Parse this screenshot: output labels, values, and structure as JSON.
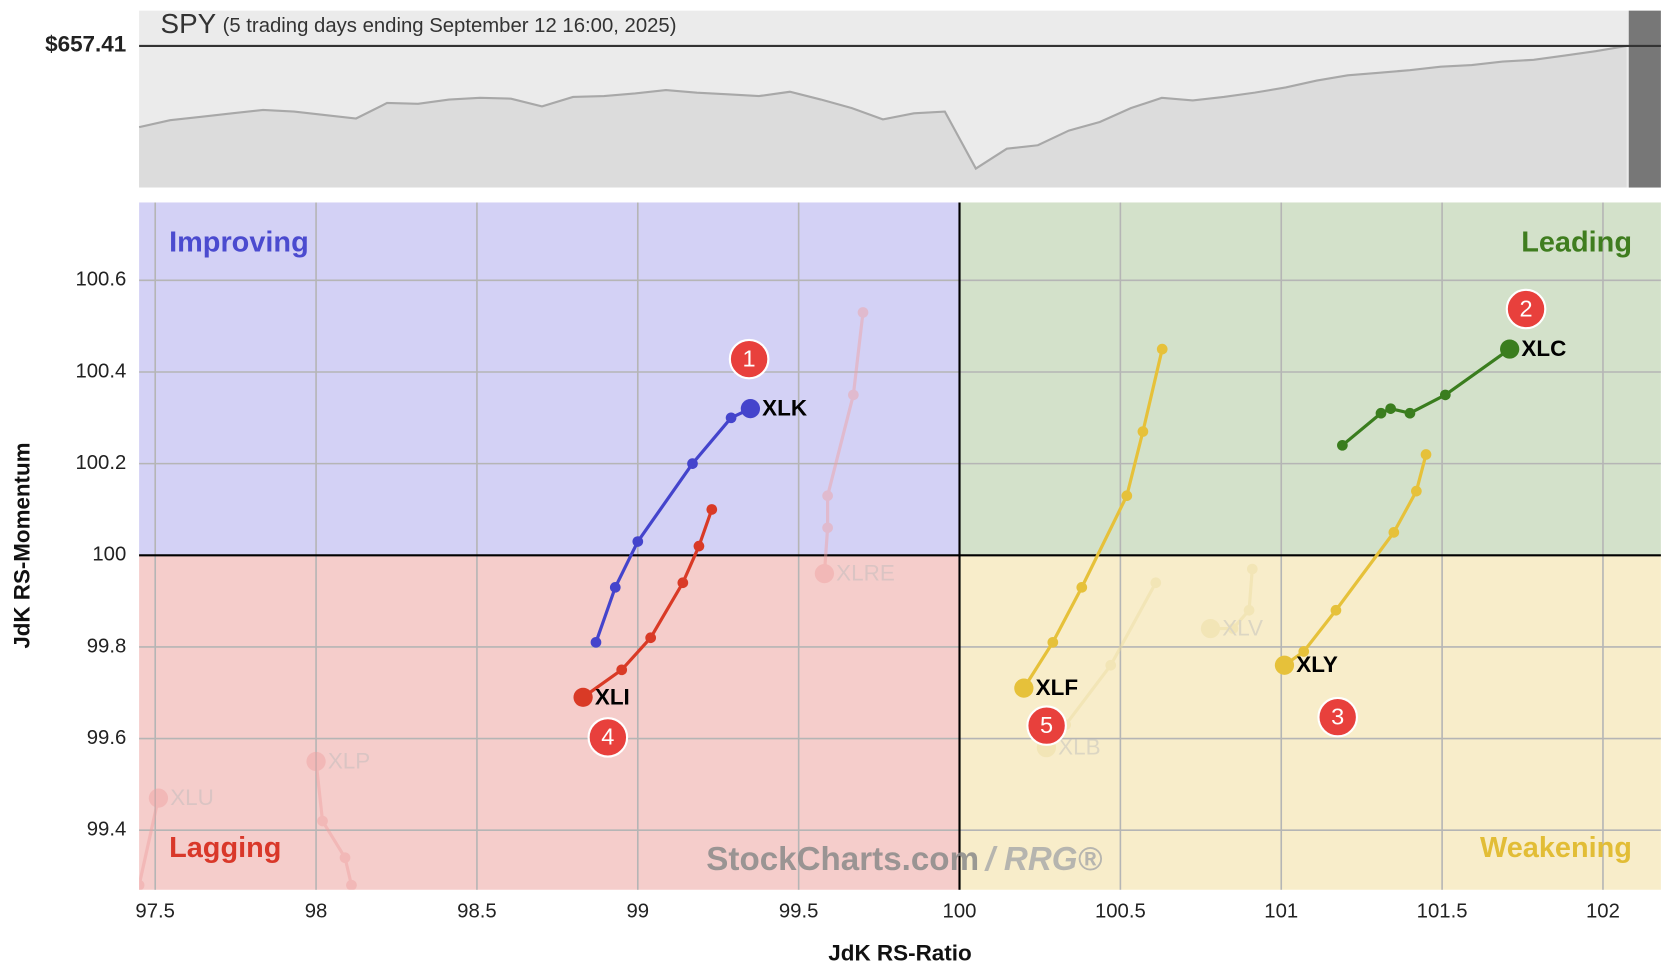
{
  "chart_data": {
    "type": "scatter",
    "title": "SPY",
    "subtitle": "(5 trading days ending September 12 16:00, 2025)",
    "xlabel": "JdK RS-Ratio",
    "ylabel": "JdK RS-Momentum",
    "xlim": [
      97.45,
      102.18
    ],
    "ylim": [
      99.27,
      100.77
    ],
    "xticks": [
      97.5,
      98,
      98.5,
      99,
      99.5,
      100,
      100.5,
      101,
      101.5,
      102
    ],
    "yticks": [
      99.4,
      99.6,
      99.8,
      100,
      100.2,
      100.4,
      100.6
    ],
    "center": [
      100,
      100
    ],
    "grid": true,
    "quadrants": {
      "improving": {
        "label": "Improving",
        "color": "#d3d1f5",
        "label_color": "#4b4bcf"
      },
      "leading": {
        "label": "Leading",
        "color": "#d3e1ca",
        "label_color": "#3f7d1f"
      },
      "lagging": {
        "label": "Lagging",
        "color": "#f5cdcb",
        "label_color": "#d9382a"
      },
      "weakening": {
        "label": "Weakening",
        "color": "#f8edca",
        "label_color": "#e2bd36"
      }
    },
    "series": [
      {
        "name": "XLU",
        "color": "#f0a0a0",
        "faded": true,
        "x": [
          97.45,
          97.51
        ],
        "y": [
          99.28,
          99.47
        ]
      },
      {
        "name": "XLP",
        "color": "#f0a0a0",
        "faded": true,
        "x": [
          98.11,
          98.09,
          98.02,
          98.0
        ],
        "y": [
          99.28,
          99.34,
          99.42,
          99.55
        ]
      },
      {
        "name": "XLRE",
        "color": "#f0a0a0",
        "faded": true,
        "x": [
          99.7,
          99.67,
          99.59,
          99.59,
          99.58
        ],
        "y": [
          100.53,
          100.35,
          100.13,
          100.06,
          99.96
        ]
      },
      {
        "name": "XLV",
        "color": "#ecdca0",
        "faded": true,
        "x": [
          100.91,
          100.9,
          100.85,
          100.78
        ],
        "y": [
          99.97,
          99.88,
          99.84,
          99.84
        ]
      },
      {
        "name": "XLB",
        "color": "#ecdca0",
        "faded": true,
        "x": [
          100.61,
          100.47,
          100.33,
          100.27
        ],
        "y": [
          99.94,
          99.76,
          99.63,
          99.58
        ]
      },
      {
        "name": "XLK",
        "color": "#4444cc",
        "faded": false,
        "x": [
          98.87,
          98.93,
          99.0,
          99.17,
          99.29,
          99.35
        ],
        "y": [
          99.81,
          99.93,
          100.03,
          100.2,
          100.3,
          100.32
        ]
      },
      {
        "name": "XLC",
        "color": "#3a7d1e",
        "faded": false,
        "x": [
          101.19,
          101.31,
          101.34,
          101.4,
          101.51,
          101.71
        ],
        "y": [
          100.24,
          100.31,
          100.32,
          100.31,
          100.35,
          100.45
        ]
      },
      {
        "name": "XLY",
        "color": "#e6c13a",
        "faded": false,
        "x": [
          101.45,
          101.42,
          101.35,
          101.17,
          101.07,
          101.01
        ],
        "y": [
          100.22,
          100.14,
          100.05,
          99.88,
          99.79,
          99.76
        ]
      },
      {
        "name": "XLI",
        "color": "#d93a26",
        "faded": false,
        "x": [
          99.23,
          99.19,
          99.14,
          99.04,
          98.95,
          98.83
        ],
        "y": [
          100.1,
          100.02,
          99.94,
          99.82,
          99.75,
          99.69
        ]
      },
      {
        "name": "XLF",
        "color": "#e6c13a",
        "faded": false,
        "x": [
          100.63,
          100.57,
          100.52,
          100.38,
          100.29,
          100.2
        ],
        "y": [
          100.45,
          100.27,
          100.13,
          99.93,
          99.81,
          99.71
        ]
      }
    ],
    "annotations": [
      "1",
      "2",
      "3",
      "4",
      "5"
    ],
    "benchmark": {
      "last": 657.41,
      "last_label": "$657.41",
      "ylim": [
        641,
        661.5
      ],
      "values": [
        648.0,
        648.8,
        649.2,
        649.6,
        650.0,
        649.8,
        649.4,
        649.0,
        650.8,
        650.7,
        651.2,
        651.4,
        651.3,
        650.4,
        651.5,
        651.6,
        651.9,
        652.3,
        652.0,
        651.8,
        651.6,
        652.1,
        651.2,
        650.2,
        648.9,
        649.6,
        649.8,
        643.2,
        645.5,
        645.9,
        647.6,
        648.6,
        650.2,
        651.4,
        651.1,
        651.5,
        652.0,
        652.6,
        653.4,
        654.0,
        654.3,
        654.6,
        655.0,
        655.2,
        655.6,
        655.8,
        656.3,
        656.8,
        657.41
      ]
    },
    "watermark": {
      "brand": "StockCharts.com",
      "product": "/ RRG®"
    }
  }
}
